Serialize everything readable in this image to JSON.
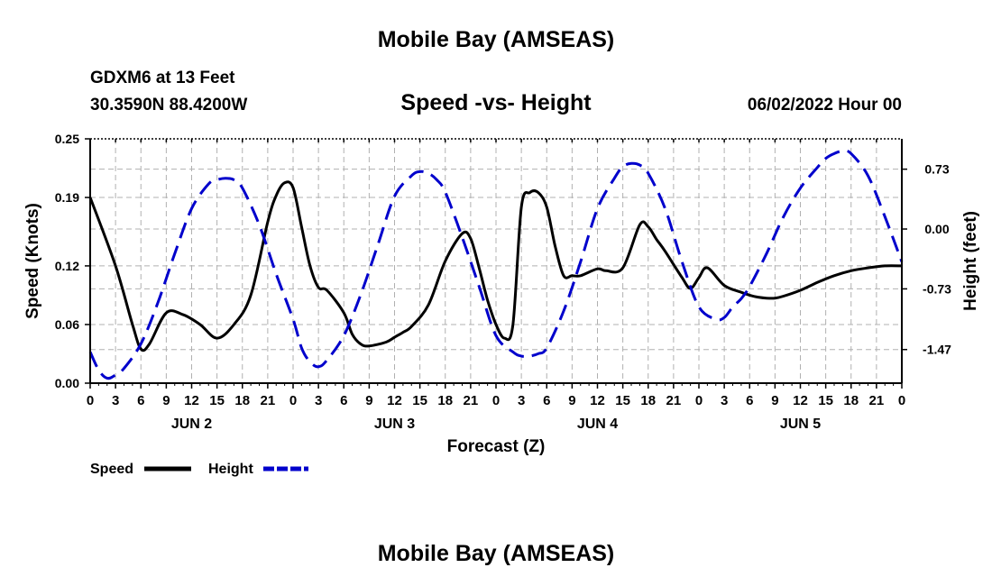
{
  "header": {
    "title": "Mobile Bay (AMSEAS)",
    "station": "GDXM6 at 13 Feet",
    "coordinates": "30.3590N  88.4200W",
    "subtitle": "Speed -vs- Height",
    "datetime": "06/02/2022 Hour 00"
  },
  "footer": {
    "title": "Mobile Bay (AMSEAS)"
  },
  "chart_data": {
    "type": "line",
    "title": "Speed -vs- Height",
    "xlabel": "Forecast (Z)",
    "ylabel": "Speed (Knots)",
    "y2label": "Height (feet)",
    "xlim": [
      0,
      96
    ],
    "ylim": [
      0,
      0.25
    ],
    "y2lim": [
      -1.88,
      1.1
    ],
    "x_ticks": [
      0,
      3,
      6,
      9,
      12,
      15,
      18,
      21,
      24,
      27,
      30,
      33,
      36,
      39,
      42,
      45,
      48,
      51,
      54,
      57,
      60,
      63,
      66,
      69,
      72,
      75,
      78,
      81,
      84,
      87,
      90,
      93,
      96
    ],
    "x_tick_labels": [
      "0",
      "3",
      "6",
      "9",
      "12",
      "15",
      "18",
      "21",
      "0",
      "3",
      "6",
      "9",
      "12",
      "15",
      "18",
      "21",
      "0",
      "3",
      "6",
      "9",
      "12",
      "15",
      "18",
      "21",
      "0",
      "3",
      "6",
      "9",
      "12",
      "15",
      "18",
      "21",
      "0"
    ],
    "day_labels": [
      {
        "x": 12,
        "label": "JUN 2"
      },
      {
        "x": 36,
        "label": "JUN 3"
      },
      {
        "x": 60,
        "label": "JUN 4"
      },
      {
        "x": 84,
        "label": "JUN 5"
      }
    ],
    "y_ticks": [
      0.0,
      0.06,
      0.12,
      0.19,
      0.25
    ],
    "y_tick_labels": [
      "0.00",
      "0.06",
      "0.12",
      "0.19",
      "0.25"
    ],
    "y2_ticks": [
      0.73,
      0.0,
      -0.73,
      -1.47
    ],
    "y2_tick_labels": [
      "0.73",
      "0.00",
      "-0.73",
      "-1.47"
    ],
    "grid": true,
    "legend_position": "bottom-left",
    "series": [
      {
        "name": "Speed",
        "axis": "left",
        "color": "#000000",
        "style": "solid",
        "x": [
          0,
          3,
          5,
          6,
          7,
          9,
          11,
          13,
          15,
          17,
          19,
          21,
          22,
          23,
          24,
          25,
          26,
          27,
          28,
          30,
          31,
          32,
          33,
          35,
          36,
          37,
          38,
          40,
          42,
          44,
          45,
          46,
          47,
          48,
          49,
          50,
          51,
          52,
          53,
          54,
          55,
          56,
          57,
          58,
          60,
          61,
          63,
          65,
          66,
          67,
          68,
          70,
          71,
          72,
          73,
          75,
          77,
          78,
          79,
          80,
          81,
          82,
          84,
          86,
          88,
          90,
          92,
          94,
          96
        ],
        "y": [
          0.19,
          0.12,
          0.06,
          0.035,
          0.04,
          0.072,
          0.07,
          0.06,
          0.046,
          0.06,
          0.09,
          0.165,
          0.192,
          0.205,
          0.2,
          0.16,
          0.12,
          0.098,
          0.095,
          0.072,
          0.05,
          0.04,
          0.038,
          0.042,
          0.047,
          0.052,
          0.058,
          0.08,
          0.125,
          0.153,
          0.148,
          0.118,
          0.085,
          0.06,
          0.046,
          0.06,
          0.18,
          0.195,
          0.195,
          0.18,
          0.14,
          0.11,
          0.11,
          0.11,
          0.117,
          0.115,
          0.118,
          0.162,
          0.16,
          0.147,
          0.135,
          0.108,
          0.097,
          0.108,
          0.118,
          0.1,
          0.093,
          0.09,
          0.088,
          0.087,
          0.087,
          0.089,
          0.095,
          0.103,
          0.11,
          0.115,
          0.118,
          0.12,
          0.12
        ]
      },
      {
        "name": "Height",
        "axis": "right",
        "color": "#0000cc",
        "style": "dashed",
        "x": [
          0,
          1,
          2,
          3,
          4,
          6,
          8,
          10,
          12,
          14,
          15,
          16,
          17,
          18,
          20,
          22,
          24,
          25,
          26,
          27,
          28,
          30,
          32,
          34,
          36,
          38,
          39,
          40,
          41,
          42,
          44,
          46,
          48,
          50,
          51,
          52,
          53,
          54,
          56,
          58,
          60,
          62,
          63,
          64,
          65,
          66,
          68,
          70,
          72,
          74,
          75,
          76,
          77,
          78,
          80,
          82,
          84,
          86,
          87,
          88,
          89,
          90,
          92,
          94,
          96
        ],
        "y": [
          -1.5,
          -1.72,
          -1.82,
          -1.78,
          -1.7,
          -1.4,
          -0.9,
          -0.3,
          0.25,
          0.55,
          0.6,
          0.62,
          0.6,
          0.5,
          0.05,
          -0.55,
          -1.1,
          -1.45,
          -1.62,
          -1.68,
          -1.6,
          -1.3,
          -0.8,
          -0.2,
          0.4,
          0.65,
          0.7,
          0.68,
          0.6,
          0.45,
          -0.1,
          -0.7,
          -1.3,
          -1.5,
          -1.55,
          -1.55,
          -1.52,
          -1.45,
          -1.0,
          -0.4,
          0.25,
          0.62,
          0.76,
          0.8,
          0.78,
          0.68,
          0.25,
          -0.4,
          -0.95,
          -1.1,
          -1.08,
          -0.95,
          -0.85,
          -0.7,
          -0.3,
          0.15,
          0.5,
          0.75,
          0.86,
          0.92,
          0.95,
          0.92,
          0.65,
          0.15,
          -0.4
        ]
      }
    ]
  }
}
